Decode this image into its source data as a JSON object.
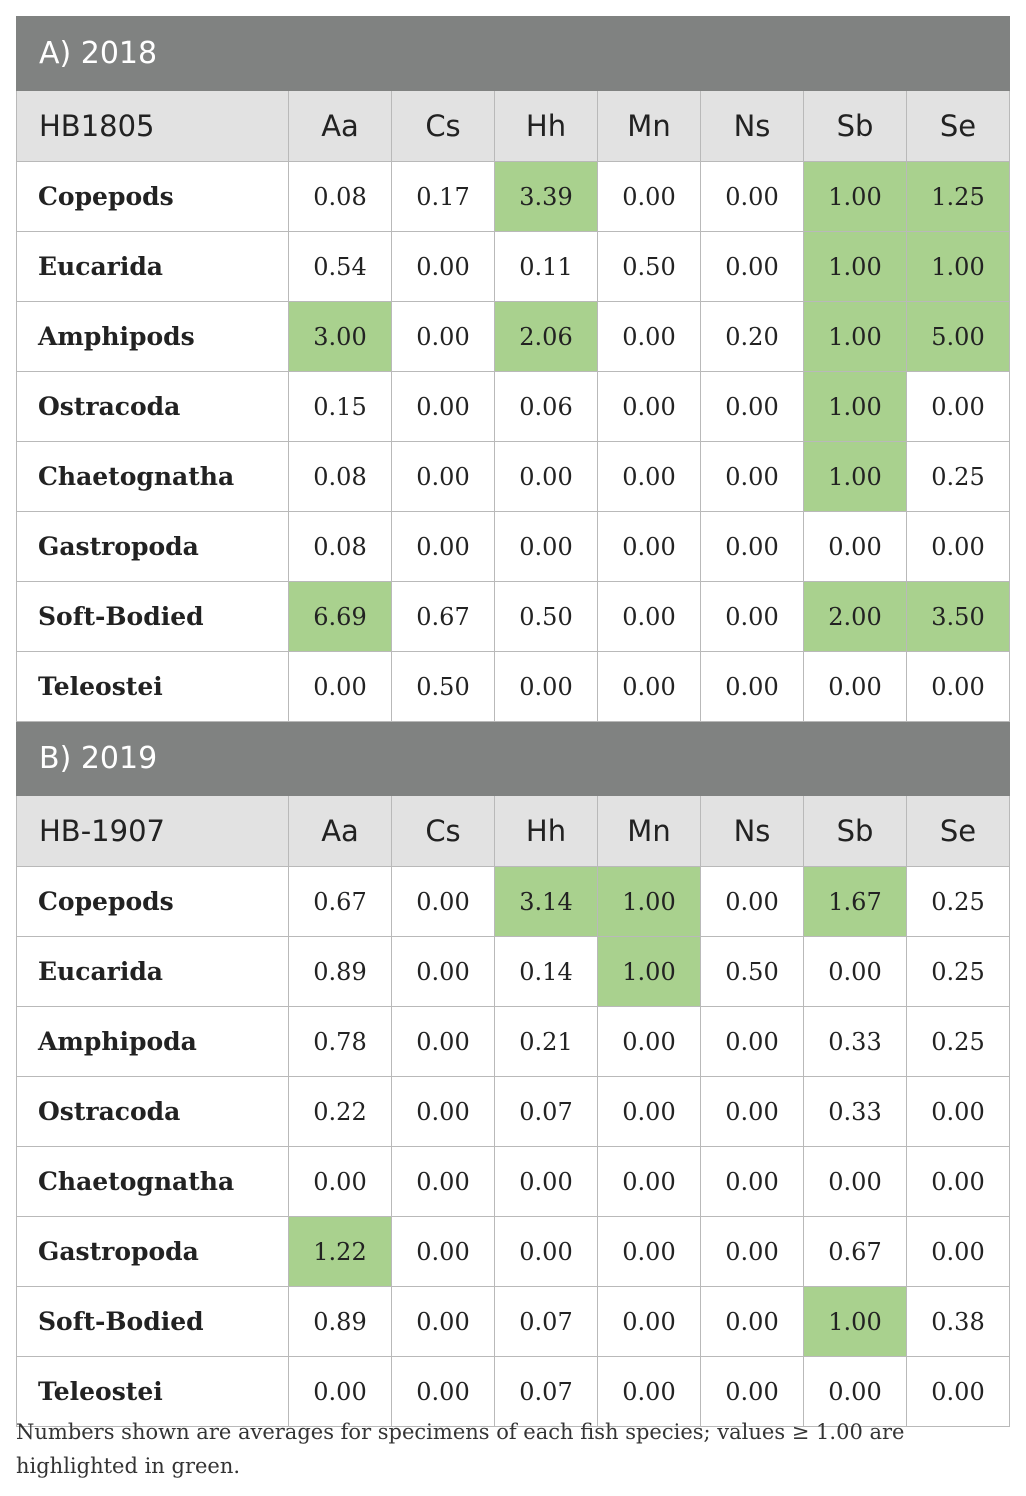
{
  "highlight_color": "#a9d18e",
  "header_color": "#808281",
  "sections": [
    {
      "title": "A) 2018",
      "cruise": "HB1805",
      "columns": [
        "Aa",
        "Cs",
        "Hh",
        "Mn",
        "Ns",
        "Sb",
        "Se"
      ],
      "rows": [
        {
          "label": "Copepods",
          "values": [
            "0.08",
            "0.17",
            "3.39",
            "0.00",
            "0.00",
            "1.00",
            "1.25"
          ]
        },
        {
          "label": "Eucarida",
          "values": [
            "0.54",
            "0.00",
            "0.11",
            "0.50",
            "0.00",
            "1.00",
            "1.00"
          ]
        },
        {
          "label": "Amphipods",
          "values": [
            "3.00",
            "0.00",
            "2.06",
            "0.00",
            "0.20",
            "1.00",
            "5.00"
          ]
        },
        {
          "label": "Ostracoda",
          "values": [
            "0.15",
            "0.00",
            "0.06",
            "0.00",
            "0.00",
            "1.00",
            "0.00"
          ]
        },
        {
          "label": "Chaetognatha",
          "values": [
            "0.08",
            "0.00",
            "0.00",
            "0.00",
            "0.00",
            "1.00",
            "0.25"
          ]
        },
        {
          "label": "Gastropoda",
          "values": [
            "0.08",
            "0.00",
            "0.00",
            "0.00",
            "0.00",
            "0.00",
            "0.00"
          ]
        },
        {
          "label": "Soft-Bodied",
          "values": [
            "6.69",
            "0.67",
            "0.50",
            "0.00",
            "0.00",
            "2.00",
            "3.50"
          ]
        },
        {
          "label": "Teleostei",
          "values": [
            "0.00",
            "0.50",
            "0.00",
            "0.00",
            "0.00",
            "0.00",
            "0.00"
          ]
        }
      ]
    },
    {
      "title": "B) 2019",
      "cruise": "HB-1907",
      "columns": [
        "Aa",
        "Cs",
        "Hh",
        "Mn",
        "Ns",
        "Sb",
        "Se"
      ],
      "rows": [
        {
          "label": "Copepods",
          "values": [
            "0.67",
            "0.00",
            "3.14",
            "1.00",
            "0.00",
            "1.67",
            "0.25"
          ]
        },
        {
          "label": "Eucarida",
          "values": [
            "0.89",
            "0.00",
            "0.14",
            "1.00",
            "0.50",
            "0.00",
            "0.25"
          ]
        },
        {
          "label": "Amphipoda",
          "values": [
            "0.78",
            "0.00",
            "0.21",
            "0.00",
            "0.00",
            "0.33",
            "0.25"
          ]
        },
        {
          "label": "Ostracoda",
          "values": [
            "0.22",
            "0.00",
            "0.07",
            "0.00",
            "0.00",
            "0.33",
            "0.00"
          ]
        },
        {
          "label": "Chaetognatha",
          "values": [
            "0.00",
            "0.00",
            "0.00",
            "0.00",
            "0.00",
            "0.00",
            "0.00"
          ]
        },
        {
          "label": "Gastropoda",
          "values": [
            "1.22",
            "0.00",
            "0.00",
            "0.00",
            "0.00",
            "0.67",
            "0.00"
          ]
        },
        {
          "label": "Soft-Bodied",
          "values": [
            "0.89",
            "0.00",
            "0.07",
            "0.00",
            "0.00",
            "1.00",
            "0.38"
          ]
        },
        {
          "label": "Teleostei",
          "values": [
            "0.00",
            "0.00",
            "0.07",
            "0.00",
            "0.00",
            "0.00",
            "0.00"
          ]
        }
      ]
    }
  ],
  "footnote": "Numbers shown are averages for specimens of each fish species; values ≥ 1.00 are highlighted in green."
}
